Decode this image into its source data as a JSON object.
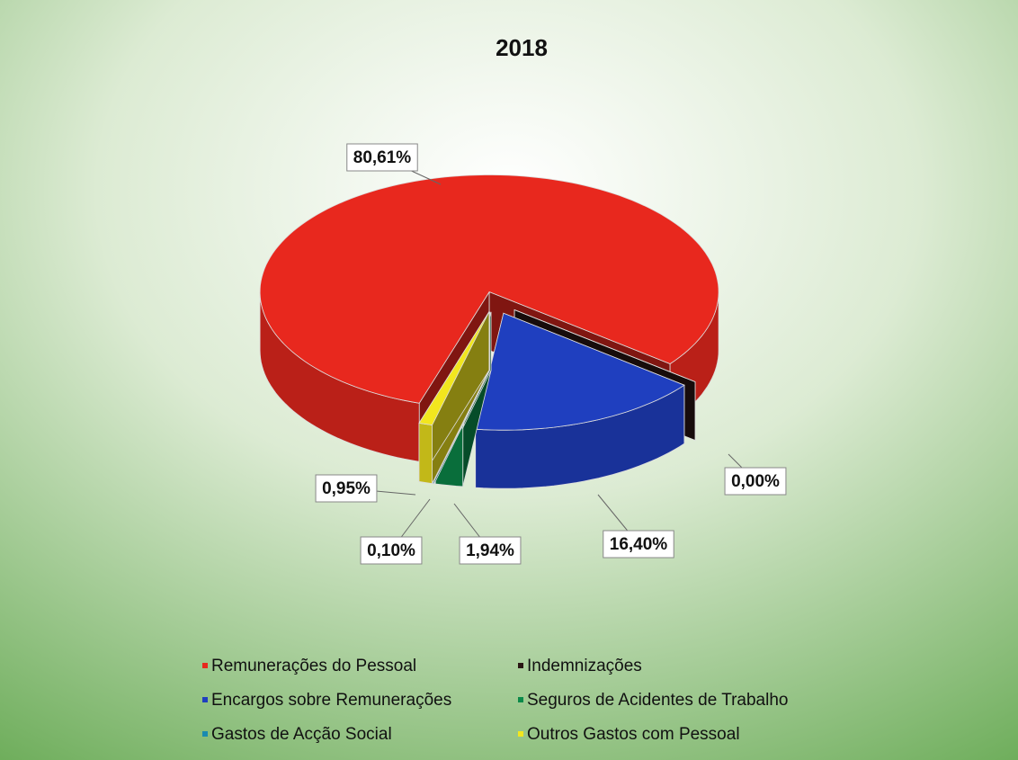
{
  "chart_data": {
    "type": "pie",
    "title": "2018",
    "categories": [
      "Remunerações do Pessoal",
      "Indemnizações",
      "Encargos sobre Remunerações",
      "Seguros de Acidentes de Trabalho",
      "Gastos de Acção Social",
      "Outros Gastos com Pessoal"
    ],
    "values": [
      80.61,
      0.0,
      16.4,
      1.94,
      0.1,
      0.95
    ],
    "value_labels": [
      "80,61%",
      "0,00%",
      "16,40%",
      "1,94%",
      "0,10%",
      "0,95%"
    ],
    "colors": [
      "#e8281e",
      "#2a1614",
      "#1f3fbf",
      "#0b8a4a",
      "#1a8ab0",
      "#f2e61e"
    ]
  }
}
